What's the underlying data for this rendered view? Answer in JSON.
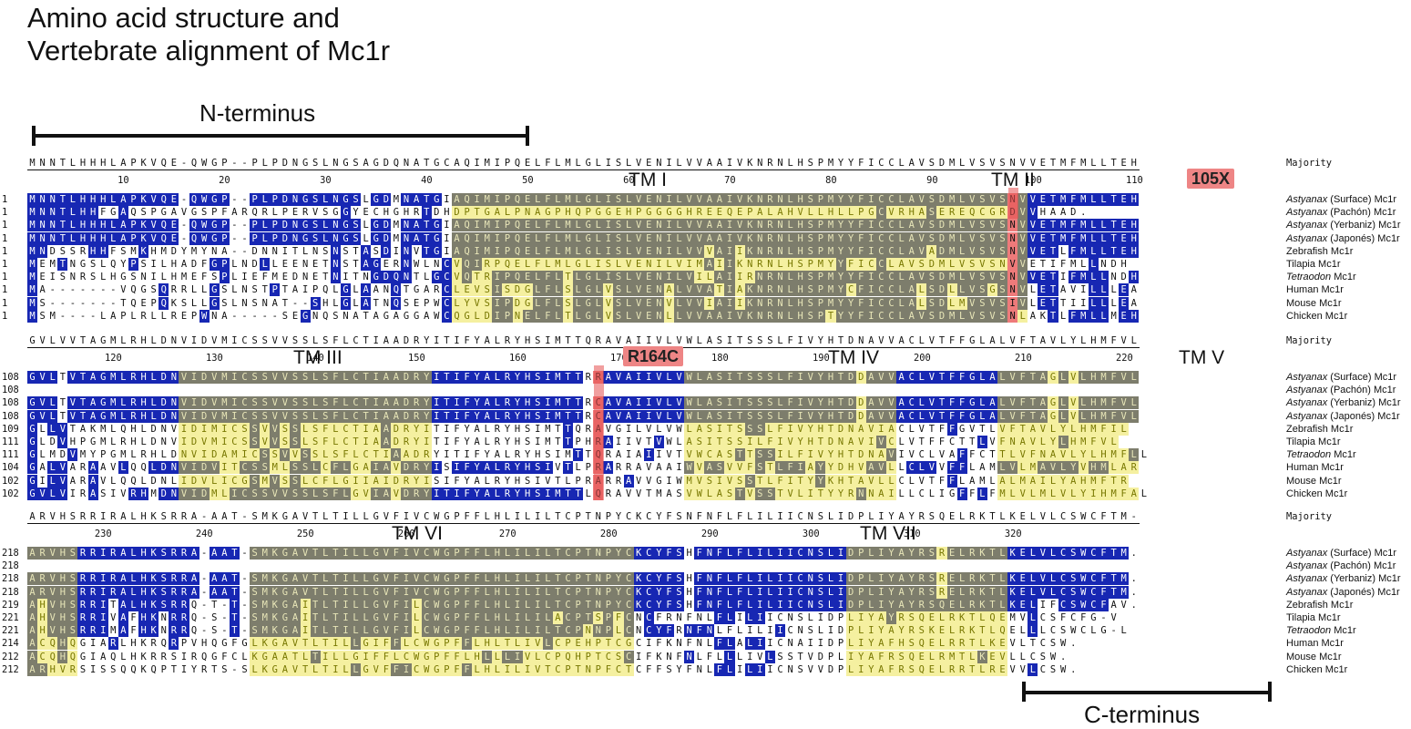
{
  "title": [
    "Amino acid structure and",
    "Vertebrate alignment of Mc1r"
  ],
  "regions": {
    "n_terminus": "N-terminus",
    "c_terminus": "C-terminus"
  },
  "majority_label": "Majority",
  "blocks": [
    {
      "consensus": "MNNTLHHHLAPKVQE-QWGP--PLPDNGSLNGSAGDQNATGCAQIMIPQELFLMLGLISLVENILVVAAIVKNRNLHSPMYYFICCLAVSDMLVSVSNVVETMFMLLTEH",
      "ruler": [
        "10",
        "20",
        "30",
        "40",
        "50",
        "60",
        "70",
        "80",
        "90",
        "100",
        "110"
      ],
      "tm_labels": [
        "TM I",
        "TM II"
      ],
      "mutation": "105X",
      "rows": [
        {
          "num": "1",
          "seq": "MNNTLHHHLAPKVQE-QWGP--PLPDNGSLNGSLGDMNATGIAQIMIPQELFLMLGLISLVENILVVAAIVKNRNLHSPMYYFICCLAVSDMLVSVSNVVETMFMLLTEH",
          "species": "Astyanax",
          "rest": " (Surface) Mc1r"
        },
        {
          "num": "1",
          "seq": "MNNTLHHFGAQSPGAVGSPFARQRLPERVSGGYECHGHRTDHDPTGALPNAGPHQPGGEHPGGGGHREEQEPALAHVLLHLLPGCVRHASEREQCGRDVVHAAD.     ",
          "species": "Astyanax",
          "rest": " (Pachón) Mc1r"
        },
        {
          "num": "1",
          "seq": "MNNTLHHHLAPKVQE-QWGP--PLPDNGSLNGSLGDMNATGIAQIMIPQELFLMLGLISLVENILVVAAIVKNRNLHSPMYYFICCLAVSDMLVSVSNVVETMFMLLTEH",
          "species": "Astyanax",
          "rest": " (Yerbaniz) Mc1r"
        },
        {
          "num": "1",
          "seq": "MNNTLHHHLAPKVQE-QWGP--PLPDNGSLNGSLGDMNATGIAQIMIPQELFLMLGLISLVENILVVAAIVKNRNLHSPMYYFICCLAVSDMLVSVSNVVETMFMLLTEH",
          "species": "Astyanax",
          "rest": " (Japonés) Mc1r"
        },
        {
          "num": "1",
          "seq": "MNDSSRHHFSMKHMDYMYNA--DNNITLNSNSTASDINVTGIAQIMIPQELFLMLGLISLVENILVVVAIIKNRNLHSPMYYFICCLAVADMLVSVSNVVETLFMLLTEH",
          "species": "",
          "rest": "Zebrafish Mc1r"
        },
        {
          "num": "1",
          "seq": "MEMTNGSLQYPSILHADFGPLNDLLEENETNSTAGERNWLNCVQIRPQELFLMLGLISLVENILVIMAIIKNRNLHSPMYYFICCLAVSDMLVSVSNVVETIFMLLNDH",
          "species": "",
          "rest": "Tilapia Mc1r"
        },
        {
          "num": "1",
          "seq": "MEISNRSLHGSNILHMEFSPLIEFMEDNETNITNGDQNTLGCVQTRIPQELFLTLGLISLVENILVILAIIRNRNLHSPMYYFICCLAVSDMLVSVSNVVETIFMLLNDH",
          "species": "Tetraodon",
          "rest": " Mc1r"
        },
        {
          "num": "1",
          "seq": "MA-------VQGSQRRLLGSLNSTPTAIPQLGLAANQTGARCLEVSISDGLFLSLGLVSLVENALVVATIAKNRNLHSPMYCFICCLALSDLLVSGSNVLETAVILLLEA",
          "species": "",
          "rest": "Human Mc1r"
        },
        {
          "num": "1",
          "seq": "MS-------TQEPQKSLLGSLNSNAT--SHLGLATNQSEPWCLYVSIPDGLFLSLGLVSLVENVLVVIAIIKNRNLHSPMYYFICCLALSDLMVSVSIVLETTIILLLEA",
          "species": "",
          "rest": "Mouse Mc1r"
        },
        {
          "num": "1",
          "seq": "MSM----LAPLRLLREPWNA-----SEGNQSNATAGAGGAWCQGLDIPNELFLTLGLVSLVENLLVVAAIVKNRNLHSPTYYFICCLAVSDMLVSVSNLAKTLFMLLMEH",
          "species": "",
          "rest": "Chicken Mc1r"
        }
      ]
    },
    {
      "consensus": "GVLVVTAGMLRHLDNVIDVMICSSVVSSLSFLCTIAADRYITIFYALRYHSIMTTQRAVAIIVLVWLASITSSSLFIVYHTDNAVVACLVTFFGLALVFTAVLYLHMFVL",
      "ruler": [
        "120",
        "130",
        "140",
        "150",
        "160",
        "170",
        "180",
        "190",
        "200",
        "210",
        "220"
      ],
      "tm_labels": [
        "TM III",
        "TM IV",
        "TM V"
      ],
      "mutation": "R164C",
      "rows": [
        {
          "num": "108",
          "seq": "GVLTVTAGMLRHLDNVIDVMICSSVVSSLSFLCTIAADRYITIFYALRYHSIMTTRRAVAIIVLVWLASITSSSLFIVYHTDDAVVACLVTFFGLALVFTAGLVLHMFVL",
          "species": "Astyanax",
          "rest": " (Surface) Mc1r"
        },
        {
          "num": "108",
          "seq": "                                                                                                             ",
          "species": "Astyanax",
          "rest": " (Pachón) Mc1r"
        },
        {
          "num": "108",
          "seq": "GVLTVTAGMLRHLDNVIDVMICSSVVSSLSFLCTIAADRYITIFYALRYHSIMTTRCAVAIIVLVWLASITSSSLFIVYHTDDAVVACLVTFFGLALVFTAGLVLHMFVL",
          "species": "Astyanax",
          "rest": " (Yerbaniz) Mc1r"
        },
        {
          "num": "108",
          "seq": "GVLTVTAGMLRHLDNVIDVMICSSVVSSLSFLCTIAADRYITIFYALRYHSIMTTRCAVAIIVLVWLASITSSSLFIVYHTDDAVVACLVTFFGLALVFTAGLVLHMFVL",
          "species": "Astyanax",
          "rest": " (Japonés) Mc1r"
        },
        {
          "num": "109",
          "seq": "GLLVTAKMLQHLDNVIDIMICSSVVSSLSFLCTIAADRYITIFYALRYHSIMTTQRAVGILVLVWLASITSSSLFIVYHTDNAVIACLVTFFGVTLVFTAVLYLHMFIL",
          "species": "",
          "rest": "Zebrafish Mc1r"
        },
        {
          "num": "111",
          "seq": "GLDVHPGMLRHLDNVIDVMICSSVVSSLSFLCTIAADRYITIFYALRYHSIMTTPHRAIIVTVWLASITSSILFIVYHTDNAVIVCLVTFFCTTLVFNAVLYLHMFVL",
          "species": "",
          "rest": "Tilapia Mc1r"
        },
        {
          "num": "111",
          "seq": "GLMDVMYPGMLRHLDNVIDAMICSSVVSSLSFLCTIAADRYITIFYALRYHSIMTTQRAIAIIVTVWCASTTSSILFIVYHTDNAVIVCLVAFFCTTLVFNAVLYLHMFLL",
          "species": "Tetraodon",
          "rest": " Mc1r"
        },
        {
          "num": "104",
          "seq": "GALVARAAVLQQLDNVIDVITCSSMLSSLCFLGAIAVDRYISIFYALRYHSIVTLPRARRAVAAIWVASVVFSTLFIAYYDHVAVLLCLVVFFLAMLVLMAVLYVHMLAR",
          "species": "",
          "rest": "Human Mc1r"
        },
        {
          "num": "102",
          "seq": "GILVARAVLQQLDNLIDVLICGSMVSSLCFLGIIAIDRYISIFYALRYHSIVTLPRARRAVVGIWMVSIVSSTLFITYYKHTAVLLCLVTFFLAMLALMAILYAHMFTR",
          "species": "",
          "rest": "Mouse Mc1r"
        },
        {
          "num": "102",
          "seq": "GVLVIRASIVRHMDNVIDMLICSSVVSSLSFLGVIAVDRYITIFYALRYHSIMTTLQRAVVTMASVWLASTVSSTVLITYYRNNAILLCLIGFFLFMLVLMLVLYIHMFAL",
          "species": "",
          "rest": "Chicken Mc1r"
        }
      ]
    },
    {
      "consensus": "ARVHSRRIRALHKSRRA-AAT-SMKGAVTLTILLGVFIVCWGPFFLHLILILTCPTNPYCKCYFSNFNFLFLILIICNSLIDPLIYAYRSQELRKTLKELVLCSWCFTM-",
      "ruler": [
        "230",
        "240",
        "250",
        "260",
        "270",
        "280",
        "290",
        "300",
        "310",
        "320"
      ],
      "tm_labels": [
        "TM VI",
        "TM VII"
      ],
      "rows": [
        {
          "num": "218",
          "seq": "ARVHSRRIRALHKSRRA-AAT-SMKGAVTLTILLGVFIVCWGPFFLHLILILTCPTNPYCKCYFSHFNFLFLILIICNSLIDPLIYAYRSRELRKTLKELVLCSWCFTM.",
          "species": "Astyanax",
          "rest": " (Surface) Mc1r"
        },
        {
          "num": "218",
          "seq": "                                                                                                             ",
          "species": "Astyanax",
          "rest": " (Pachón) Mc1r"
        },
        {
          "num": "218",
          "seq": "ARVHSRRIRALHKSRRA-AAT-SMKGAVTLTILLGVFIVCWGPFFLHLILILTCPTNPYCKCYFSHFNFLFLILIICNSLIDPLIYAYRSRELRKTLKELVLCSWCFTM.",
          "species": "Astyanax",
          "rest": " (Yerbaniz) Mc1r"
        },
        {
          "num": "218",
          "seq": "ARVHSRRIRALHKSRRA-AAT-SMKGAVTLTILLGVFIVCWGPFFLHLILILTCPTNPYCKCYFSHFNFLFLILIICNSLIDPLIYAYRSRELRKTLKELVLCSWCFTM.",
          "species": "Astyanax",
          "rest": " (Japonés) Mc1r"
        },
        {
          "num": "219",
          "seq": "AHVHSRRITALHKSRRQ-T-T-SMKGAITLTILLGVFILCWGPFFLHLILILTCPTNPYCKCYFSHFNFLFLILIICNSLIDPLIYAYRSQELRKTLKELIFCSWCFAV.",
          "species": "",
          "rest": "Zebrafish Mc1r"
        },
        {
          "num": "221",
          "seq": "AHVHSRRIVAFHKNRRQ-S-T-SMKGAITLTILLGVFILCWGPFFLHLILILACPTSPFCNCFRNFNLFLILIICNSLIDPLIYAYRSQELRKTLQEMVLCSFCFG-V",
          "species": "",
          "rest": "Tilapia Mc1r"
        },
        {
          "num": "221",
          "seq": "AHVHSRRIMAFHKNRRQ-S-T-SMKGAITLTILLGVFILCWGPFFLHLILILTCPNNPLCNCYFRNFNLFLILIICNSLIDPLIYAYRSKELRKTLQELLLCSWCLG-L",
          "species": "Tetraodon",
          "rest": " Mc1r"
        },
        {
          "num": "214",
          "seq": "ACQHQGIARLHKRQRPVHQGFGLKGAVTLTILLGIFFLCWGPFFLHLTLIVLCPEHPTCGCIFKNFNLFLALIICNAIIDPLIYAFHSQELRRTLKEVLTCSW.   ",
          "species": "",
          "rest": "Human Mc1r"
        },
        {
          "num": "212",
          "seq": "ACQHQGIAQLHKRRSIRQGFCLKGAATLTILLGIFFLCWGPFFLHLLLIVLCPQHPTCSCIFKNFNLFLLLIVLSSTVDPLIYAFRSQELRMTLKEVLLCSW.   ",
          "species": "",
          "rest": "Mouse Mc1r"
        },
        {
          "num": "212",
          "seq": "ARHVRSISSQQKQPTIYRTS-SLKGAVTLTILLGVFFICWGPFFLHLILIVTCPTNPFCTCFFSYFNLFLILIICNSVVDPLIYAFRSQELRRTLREVVLCSW.   ",
          "species": "",
          "rest": "Chicken Mc1r"
        }
      ]
    }
  ],
  "colors": {
    "identical": "#1727b3",
    "tm_yellow": "#f5f0a0",
    "tm_gray": "#7d7d6c",
    "mutation": "#ee7a7a"
  }
}
